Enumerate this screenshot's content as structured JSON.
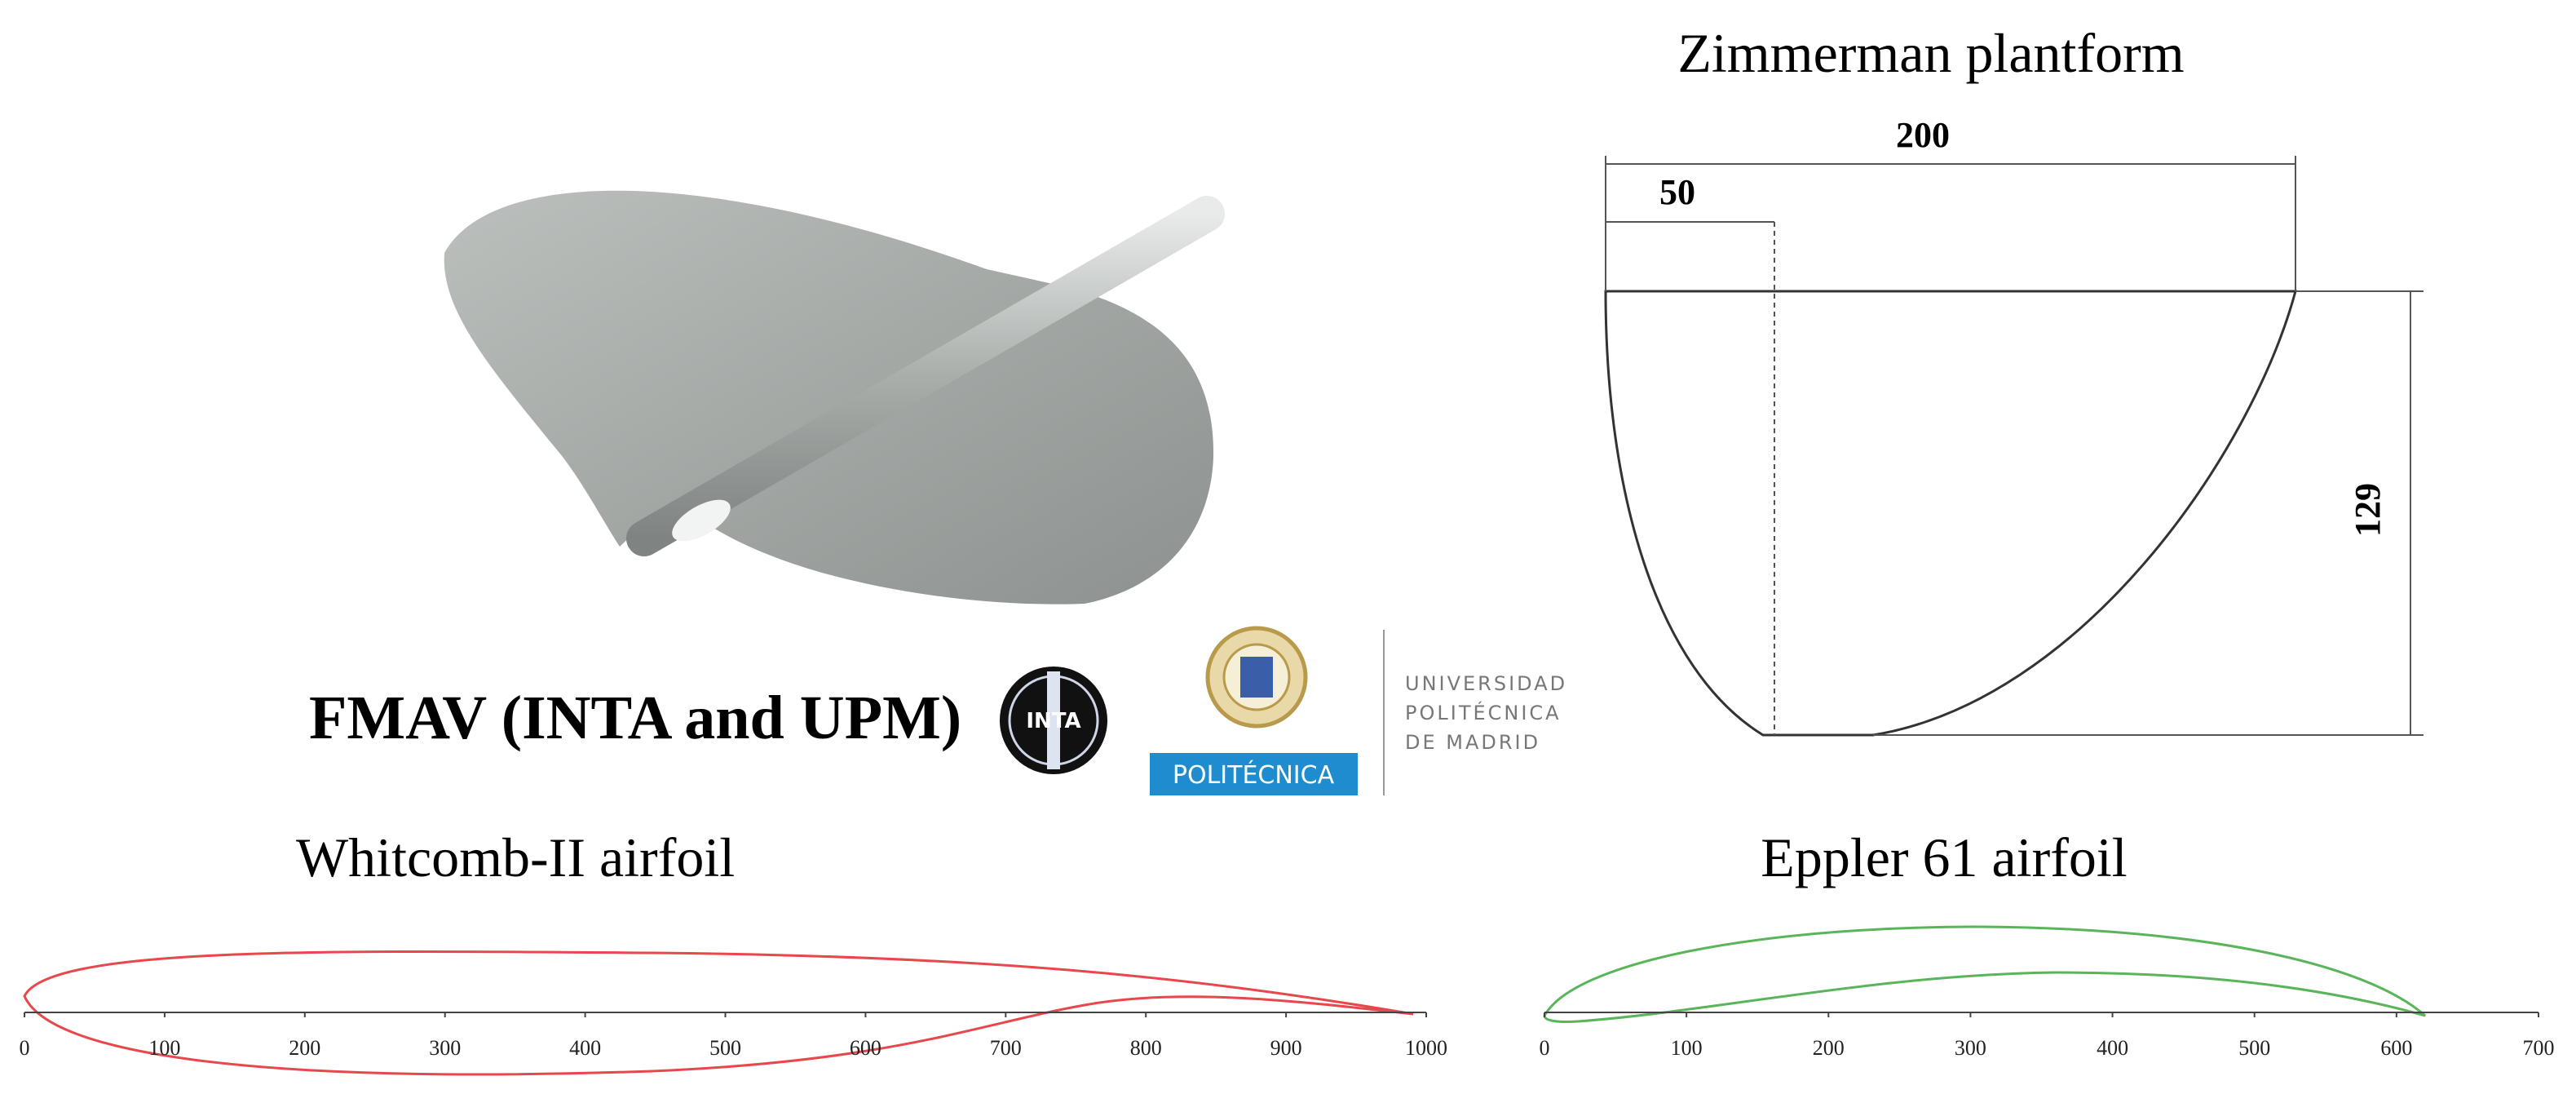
{
  "wing_model": {
    "caption": "FMAV (INTA and UPM)"
  },
  "logos": {
    "inta": "INTA",
    "upm_badge": "POLITÉCNICA",
    "upm_name": [
      "UNIVERSIDAD",
      "POLITÉCNICA",
      "DE MADRID"
    ]
  },
  "planform": {
    "title": "Zimmerman plantform",
    "dimensions": {
      "span": 200,
      "offset": 50,
      "height": 129
    }
  },
  "airfoils": [
    {
      "title": "Whitcomb-II airfoil",
      "ticks": [
        0,
        100,
        200,
        300,
        400,
        500,
        600,
        700,
        800,
        900,
        1000
      ]
    },
    {
      "title": "Eppler 61 airfoil",
      "ticks": [
        0,
        100,
        200,
        300,
        400,
        500,
        600,
        700
      ]
    }
  ]
}
